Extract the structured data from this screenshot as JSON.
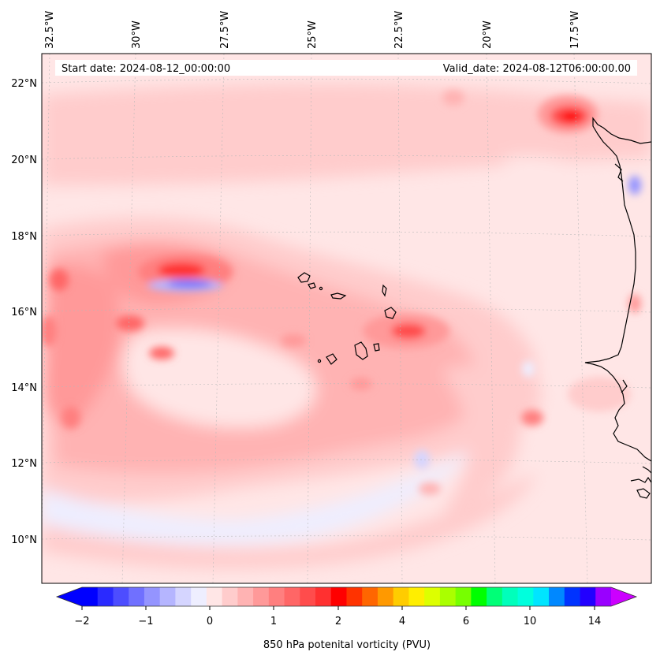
{
  "header": {
    "start_date": "Start date: 2024-08-12_00:00:00",
    "valid_date": "Valid_date: 2024-08-12T06:00:00.00"
  },
  "axes": {
    "lon_labels": [
      "32.5°W",
      "30°W",
      "27.5°W",
      "25°W",
      "22.5°W",
      "20°W",
      "17.5°W"
    ],
    "lat_labels": [
      "22°N",
      "20°N",
      "18°N",
      "16°N",
      "14°N",
      "12°N",
      "10°N"
    ],
    "lon_range": [
      -33,
      -15
    ],
    "lat_range": [
      9,
      22.8
    ]
  },
  "colorbar": {
    "label": "850 hPa potenital vorticity (PVU)",
    "ticks": [
      "−2",
      "−1",
      "0",
      "1",
      "2",
      "4",
      "6",
      "10",
      "14"
    ],
    "colors": [
      "#0000ff",
      "#2a2aff",
      "#4d4dff",
      "#7070ff",
      "#9494ff",
      "#b5b5ff",
      "#d5d5ff",
      "#eeeeff",
      "#ffe6e6",
      "#ffcccc",
      "#ffb3b3",
      "#ff9999",
      "#ff7f7f",
      "#ff6666",
      "#ff4c4c",
      "#ff3030",
      "#ff0000",
      "#ff3300",
      "#ff6600",
      "#ff9900",
      "#ffcc00",
      "#ffee00",
      "#ddff00",
      "#aaff00",
      "#77ff00",
      "#00ff00",
      "#00ff77",
      "#00ffbb",
      "#00ffdd",
      "#00e5ff",
      "#0088ff",
      "#0033ff",
      "#2200ff",
      "#9900ff"
    ],
    "extend_low": "#0000ff",
    "extend_high": "#cc00ff"
  }
}
